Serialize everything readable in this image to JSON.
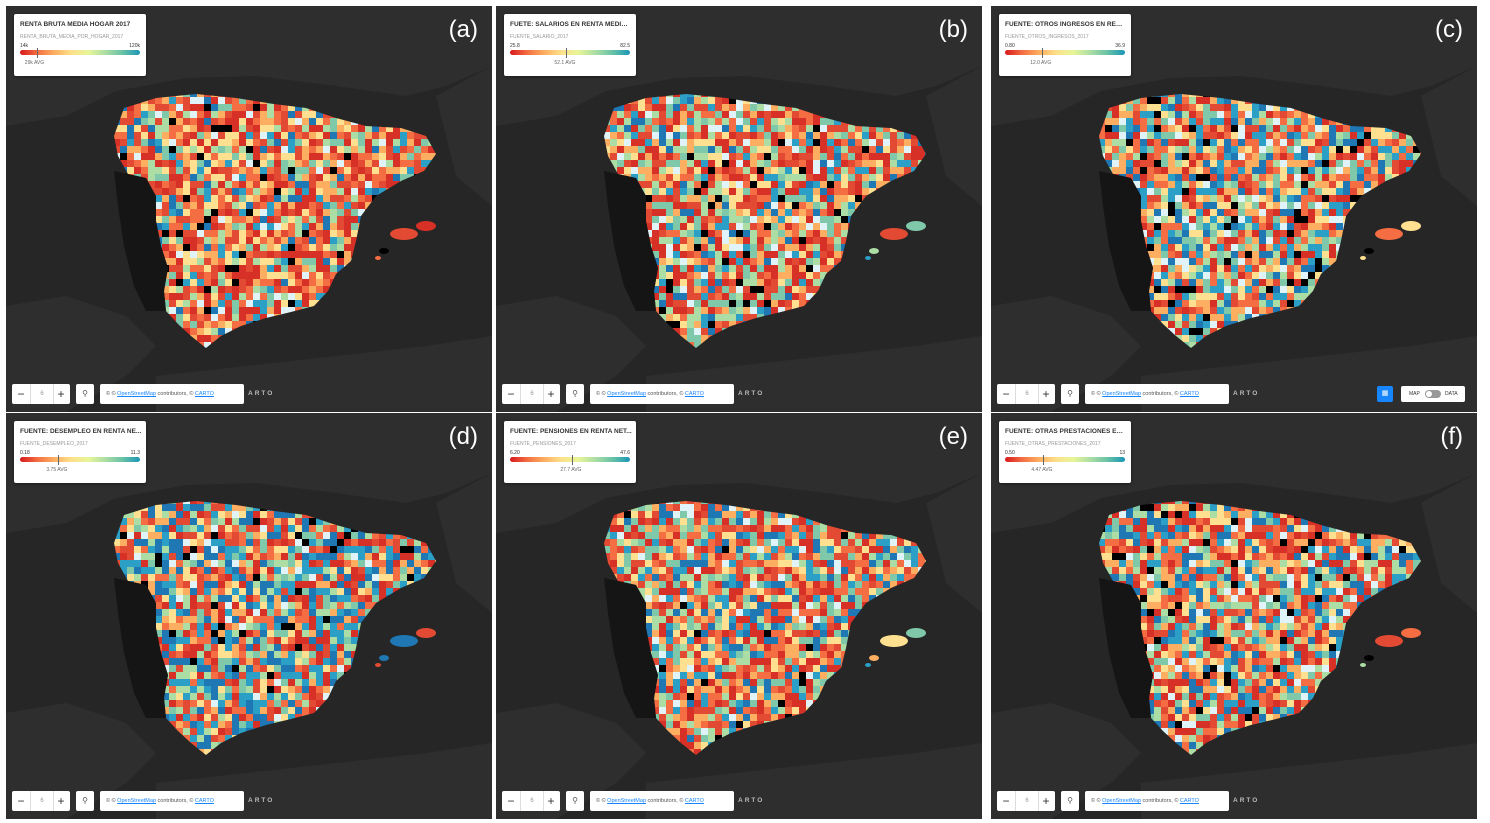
{
  "panels": [
    {
      "label": "(a)",
      "title": "RENTA BRUTA MEDIA HOGAR 2017",
      "attr": "RENTA_BRUTA_MEDIA_POR_HOGAR_2017",
      "min": "14k",
      "max": "120k",
      "avg": "29k AVG",
      "avg_frac": 0.14,
      "palette": [
        "#d73027",
        "#e34a33",
        "#f46d43",
        "#fdae61",
        "#fee090",
        "#e0f3f8",
        "#abdda4",
        "#7fc8a9",
        "#2c9fc6",
        "#1f78b4",
        "#000000"
      ],
      "weights": [
        18,
        14,
        14,
        12,
        10,
        6,
        7,
        6,
        6,
        5,
        4
      ],
      "seed": 11
    },
    {
      "label": "(b)",
      "title": "FUETE: SALARIOS EN RENTA MEDIA ...",
      "attr": "FUENTE_SALARIO_2017",
      "min": "25.8",
      "max": "82.5",
      "avg": "52.1 AVG",
      "avg_frac": 0.47,
      "palette": [
        "#d73027",
        "#e34a33",
        "#f46d43",
        "#fdae61",
        "#fee090",
        "#e0f3f8",
        "#abdda4",
        "#7fc8a9",
        "#2c9fc6",
        "#1f78b4",
        "#000000"
      ],
      "weights": [
        16,
        12,
        10,
        10,
        8,
        6,
        10,
        10,
        8,
        7,
        4
      ],
      "seed": 23
    },
    {
      "label": "(c)",
      "title": "FUENTE: OTROS INGRESOS EN RENT...",
      "attr": "FUENTE_OTROS_INGRESOS_2017",
      "min": "0.80",
      "max": "36.9",
      "avg": "12.0 AVG",
      "avg_frac": 0.31,
      "palette": [
        "#d73027",
        "#e34a33",
        "#f46d43",
        "#fdae61",
        "#fee090",
        "#e0f3f8",
        "#abdda4",
        "#7fc8a9",
        "#2c9fc6",
        "#1f78b4",
        "#000000"
      ],
      "weights": [
        10,
        8,
        12,
        12,
        10,
        6,
        8,
        8,
        10,
        10,
        6
      ],
      "seed": 37
    },
    {
      "label": "(d)",
      "title": "FUENTE: DESEMPLEO EN RENTA NE...",
      "attr": "FUENTE_DESEMPLEO_2017",
      "min": "0.18",
      "max": "11.3",
      "avg": "3.75 AVG",
      "avg_frac": 0.32,
      "palette": [
        "#d73027",
        "#e34a33",
        "#f46d43",
        "#fdae61",
        "#fee090",
        "#e0f3f8",
        "#abdda4",
        "#7fc8a9",
        "#2c9fc6",
        "#1f78b4",
        "#000000"
      ],
      "weights": [
        12,
        10,
        10,
        8,
        6,
        4,
        8,
        8,
        14,
        16,
        4
      ],
      "seed": 53
    },
    {
      "label": "(e)",
      "title": "FUENTE: PENSIONES EN RENTA NET...",
      "attr": "FUENTE_PENSIONES_2017",
      "min": "6.20",
      "max": "47.6",
      "avg": "27.7 AVG",
      "avg_frac": 0.52,
      "palette": [
        "#d73027",
        "#e34a33",
        "#f46d43",
        "#fdae61",
        "#fee090",
        "#e0f3f8",
        "#abdda4",
        "#7fc8a9",
        "#2c9fc6",
        "#1f78b4",
        "#000000"
      ],
      "weights": [
        14,
        12,
        14,
        10,
        8,
        6,
        8,
        8,
        10,
        8,
        2
      ],
      "seed": 71
    },
    {
      "label": "(f)",
      "title": "FUENTE: OTRAS PRESTACIONES EN ...",
      "attr": "FUENTE_OTRAS_PRESTACIONES_2017",
      "min": "0.50",
      "max": "13",
      "avg": "4.47 AVG",
      "avg_frac": 0.32,
      "palette": [
        "#d73027",
        "#e34a33",
        "#f46d43",
        "#fdae61",
        "#fee090",
        "#e0f3f8",
        "#abdda4",
        "#7fc8a9",
        "#2c9fc6",
        "#1f78b4",
        "#000000"
      ],
      "weights": [
        14,
        10,
        12,
        10,
        8,
        6,
        8,
        8,
        10,
        10,
        4
      ],
      "seed": 89
    }
  ],
  "toolbar": {
    "zoom_level": "6",
    "minus": "−",
    "plus": "+",
    "attribution_prefix": "©",
    "osm_link": "OpenStreetMap",
    "contributors": "contributors, ©",
    "carto_link": "CARTO",
    "carto_brand": "ARTO",
    "map_label": "MAP",
    "data_label": "DATA"
  },
  "colors": {
    "background": "#262626",
    "land": "#2e2e2e",
    "sea": "#262626"
  }
}
